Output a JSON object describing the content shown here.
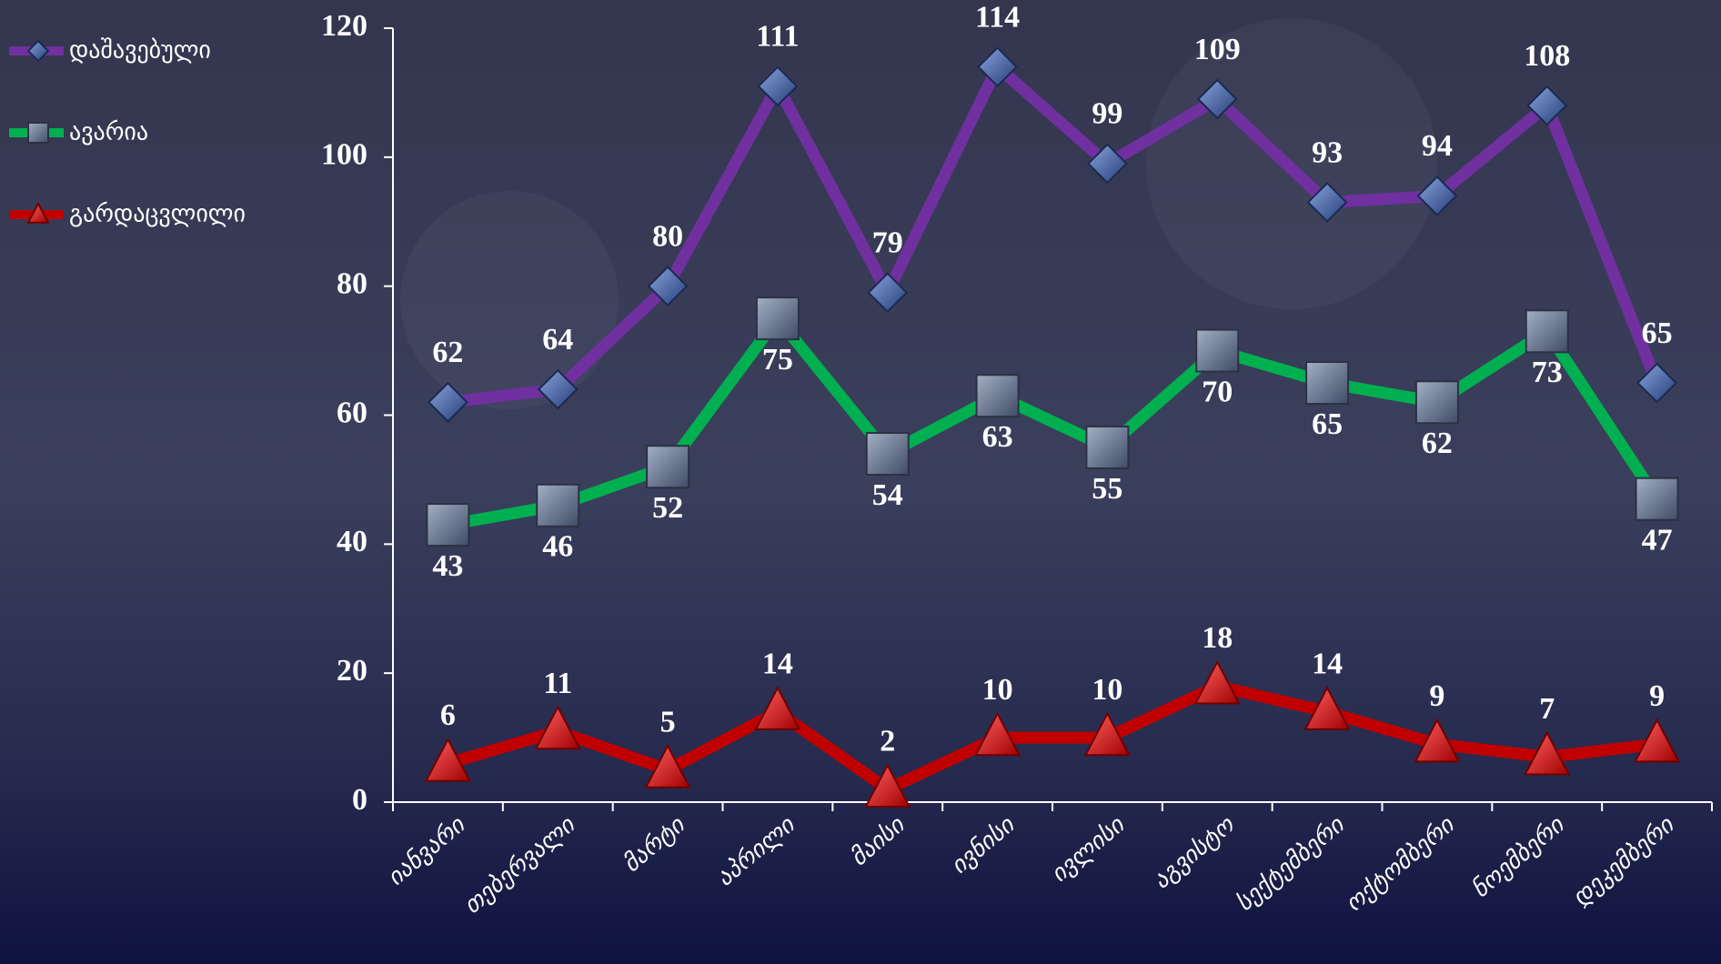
{
  "chart_data": {
    "type": "line",
    "categories": [
      "იანვარი",
      "თებერვალი",
      "მარტი",
      "აპრილი",
      "მაისი",
      "ივნისი",
      "ივლისი",
      "აგვისტო",
      "სექტემბერი",
      "ოქტომბერი",
      "ნოემბერი",
      "დეკემბერი"
    ],
    "series": [
      {
        "name": "დაშავებული",
        "color": "#7030a0",
        "marker": "diamond",
        "values": [
          62,
          64,
          80,
          111,
          79,
          114,
          99,
          109,
          93,
          94,
          108,
          65
        ]
      },
      {
        "name": "ავარია",
        "color": "#00b050",
        "marker": "square",
        "values": [
          43,
          46,
          52,
          75,
          54,
          63,
          55,
          70,
          65,
          62,
          73,
          47
        ]
      },
      {
        "name": "გარდაცვლილი",
        "color": "#c00000",
        "marker": "triangle",
        "values": [
          6,
          11,
          5,
          14,
          2,
          10,
          10,
          18,
          14,
          9,
          7,
          9
        ]
      }
    ],
    "ylim": [
      0,
      120
    ],
    "yticks": [
      0,
      20,
      40,
      60,
      80,
      100,
      120
    ],
    "grid": false,
    "legend": "top-left"
  }
}
